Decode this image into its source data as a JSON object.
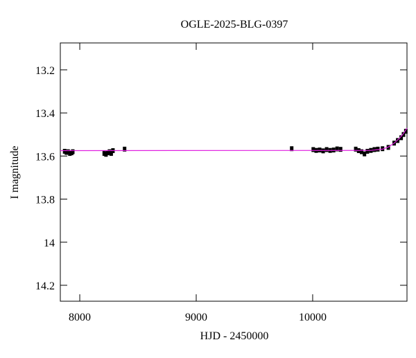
{
  "chart_data": {
    "type": "scatter",
    "title": "OGLE-2025-BLG-0397",
    "x_label": "HJD - 2450000",
    "y_label": "I magnitude",
    "xlim": [
      7833,
      10810
    ],
    "ylim": [
      13.075,
      14.274
    ],
    "y_inverted": true,
    "xticks": [
      8000,
      9000,
      10000
    ],
    "yticks": [
      13.2,
      13.4,
      13.6,
      13.8,
      14,
      14.2
    ],
    "series": [
      {
        "name": "data",
        "color": "#000000",
        "x": [
          7870,
          7885,
          7900,
          7915,
          7930,
          7940,
          8210,
          8225,
          8240,
          8255,
          8270,
          8285,
          8385,
          9820,
          10005,
          10030,
          10060,
          10090,
          10120,
          10150,
          10180,
          10210,
          10240,
          10370,
          10395,
          10420,
          10445,
          10470,
          10500,
          10530,
          10560,
          10600,
          10650,
          10700,
          10730,
          10760,
          10780,
          10800
        ],
        "y": [
          13.578,
          13.583,
          13.58,
          13.588,
          13.585,
          13.58,
          13.588,
          13.592,
          13.585,
          13.58,
          13.588,
          13.575,
          13.568,
          13.566,
          13.57,
          13.574,
          13.572,
          13.576,
          13.57,
          13.574,
          13.572,
          13.567,
          13.569,
          13.568,
          13.575,
          13.58,
          13.59,
          13.578,
          13.574,
          13.57,
          13.568,
          13.566,
          13.56,
          13.54,
          13.528,
          13.515,
          13.5,
          13.485
        ]
      },
      {
        "name": "model",
        "color": "#e020e0",
        "x": [
          7833,
          10500,
          10600,
          10650,
          10700,
          10750,
          10780,
          10810
        ],
        "y": [
          13.575,
          13.574,
          13.568,
          13.558,
          13.54,
          13.515,
          13.495,
          13.47
        ]
      }
    ]
  }
}
